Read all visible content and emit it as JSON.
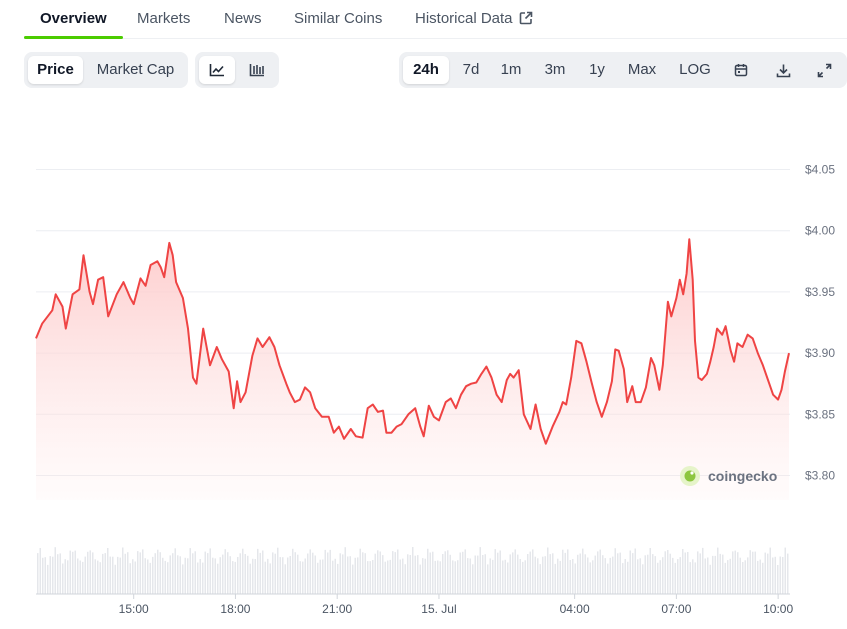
{
  "tabs": [
    {
      "label": "Overview",
      "active": true
    },
    {
      "label": "Markets"
    },
    {
      "label": "News"
    },
    {
      "label": "Similar Coins"
    },
    {
      "label": "Historical Data",
      "external": true
    }
  ],
  "metric_toggle": [
    "Price",
    "Market Cap"
  ],
  "metric_active": "Price",
  "chart_style": {
    "active": "line",
    "options": [
      "line-chart-icon",
      "candlestick-icon"
    ]
  },
  "ranges": [
    "24h",
    "7d",
    "1m",
    "3m",
    "1y",
    "Max",
    "LOG"
  ],
  "range_active": "24h",
  "tools": [
    "calendar-icon",
    "download-icon",
    "fullscreen-icon"
  ],
  "watermark": "coingecko",
  "colors": {
    "line": "#ef4444",
    "fill": "#fecaca",
    "volume": "#e5e7eb",
    "accent": "#4bcc00"
  },
  "chart_data": {
    "type": "area",
    "ylim": [
      3.78,
      4.07
    ],
    "yticks": [
      {
        "v": 4.05,
        "label": "$4.05"
      },
      {
        "v": 4.0,
        "label": "$4.00"
      },
      {
        "v": 3.95,
        "label": "$3.95"
      },
      {
        "v": 3.9,
        "label": "$3.90"
      },
      {
        "v": 3.85,
        "label": "$3.85"
      },
      {
        "v": 3.8,
        "label": "$3.80"
      }
    ],
    "xlim": [
      12.12,
      34.32
    ],
    "xticks": [
      {
        "t": 15,
        "label": "15:00"
      },
      {
        "t": 18,
        "label": "18:00"
      },
      {
        "t": 21,
        "label": "21:00"
      },
      {
        "t": 24,
        "label": "15. Jul"
      },
      {
        "t": 28,
        "label": "04:00"
      },
      {
        "t": 31,
        "label": "07:00"
      },
      {
        "t": 34,
        "label": "10:00"
      }
    ],
    "price": [
      [
        12.12,
        3.912
      ],
      [
        12.3,
        3.924
      ],
      [
        12.6,
        3.935
      ],
      [
        12.7,
        3.948
      ],
      [
        12.9,
        3.938
      ],
      [
        13.0,
        3.92
      ],
      [
        13.2,
        3.948
      ],
      [
        13.4,
        3.952
      ],
      [
        13.52,
        3.98
      ],
      [
        13.7,
        3.95
      ],
      [
        13.8,
        3.94
      ],
      [
        13.95,
        3.96
      ],
      [
        14.1,
        3.962
      ],
      [
        14.25,
        3.93
      ],
      [
        14.5,
        3.948
      ],
      [
        14.7,
        3.958
      ],
      [
        14.9,
        3.945
      ],
      [
        15.0,
        3.94
      ],
      [
        15.2,
        3.961
      ],
      [
        15.35,
        3.955
      ],
      [
        15.5,
        3.972
      ],
      [
        15.7,
        3.975
      ],
      [
        15.8,
        3.97
      ],
      [
        15.9,
        3.962
      ],
      [
        16.05,
        3.99
      ],
      [
        16.15,
        3.98
      ],
      [
        16.25,
        3.958
      ],
      [
        16.45,
        3.945
      ],
      [
        16.6,
        3.92
      ],
      [
        16.75,
        3.88
      ],
      [
        16.85,
        3.875
      ],
      [
        17.05,
        3.92
      ],
      [
        17.25,
        3.89
      ],
      [
        17.45,
        3.905
      ],
      [
        17.6,
        3.895
      ],
      [
        17.8,
        3.885
      ],
      [
        17.95,
        3.855
      ],
      [
        18.05,
        3.877
      ],
      [
        18.15,
        3.86
      ],
      [
        18.3,
        3.868
      ],
      [
        18.5,
        3.898
      ],
      [
        18.65,
        3.912
      ],
      [
        18.8,
        3.905
      ],
      [
        19.0,
        3.913
      ],
      [
        19.15,
        3.905
      ],
      [
        19.3,
        3.89
      ],
      [
        19.5,
        3.875
      ],
      [
        19.6,
        3.868
      ],
      [
        19.75,
        3.86
      ],
      [
        19.9,
        3.862
      ],
      [
        20.05,
        3.872
      ],
      [
        20.2,
        3.868
      ],
      [
        20.35,
        3.855
      ],
      [
        20.55,
        3.848
      ],
      [
        20.75,
        3.848
      ],
      [
        20.9,
        3.835
      ],
      [
        21.05,
        3.84
      ],
      [
        21.2,
        3.83
      ],
      [
        21.4,
        3.838
      ],
      [
        21.55,
        3.832
      ],
      [
        21.75,
        3.831
      ],
      [
        21.9,
        3.855
      ],
      [
        22.05,
        3.858
      ],
      [
        22.2,
        3.852
      ],
      [
        22.35,
        3.853
      ],
      [
        22.45,
        3.835
      ],
      [
        22.6,
        3.835
      ],
      [
        22.75,
        3.84
      ],
      [
        22.9,
        3.842
      ],
      [
        23.1,
        3.85
      ],
      [
        23.3,
        3.855
      ],
      [
        23.45,
        3.84
      ],
      [
        23.55,
        3.832
      ],
      [
        23.7,
        3.857
      ],
      [
        23.85,
        3.848
      ],
      [
        24.0,
        3.845
      ],
      [
        24.2,
        3.86
      ],
      [
        24.35,
        3.863
      ],
      [
        24.5,
        3.855
      ],
      [
        24.65,
        3.866
      ],
      [
        24.8,
        3.873
      ],
      [
        24.95,
        3.875
      ],
      [
        25.1,
        3.876
      ],
      [
        25.25,
        3.883
      ],
      [
        25.4,
        3.889
      ],
      [
        25.55,
        3.88
      ],
      [
        25.7,
        3.866
      ],
      [
        25.85,
        3.86
      ],
      [
        26.0,
        3.878
      ],
      [
        26.1,
        3.883
      ],
      [
        26.2,
        3.88
      ],
      [
        26.35,
        3.886
      ],
      [
        26.5,
        3.85
      ],
      [
        26.7,
        3.838
      ],
      [
        26.85,
        3.858
      ],
      [
        27.0,
        3.838
      ],
      [
        27.15,
        3.826
      ],
      [
        27.35,
        3.84
      ],
      [
        27.55,
        3.852
      ],
      [
        27.65,
        3.86
      ],
      [
        27.75,
        3.858
      ],
      [
        27.9,
        3.88
      ],
      [
        28.05,
        3.91
      ],
      [
        28.2,
        3.908
      ],
      [
        28.35,
        3.893
      ],
      [
        28.5,
        3.876
      ],
      [
        28.65,
        3.86
      ],
      [
        28.8,
        3.848
      ],
      [
        28.95,
        3.86
      ],
      [
        29.1,
        3.877
      ],
      [
        29.2,
        3.903
      ],
      [
        29.3,
        3.902
      ],
      [
        29.45,
        3.887
      ],
      [
        29.55,
        3.86
      ],
      [
        29.7,
        3.873
      ],
      [
        29.8,
        3.86
      ],
      [
        29.95,
        3.86
      ],
      [
        30.1,
        3.872
      ],
      [
        30.25,
        3.896
      ],
      [
        30.35,
        3.89
      ],
      [
        30.5,
        3.87
      ],
      [
        30.6,
        3.89
      ],
      [
        30.75,
        3.942
      ],
      [
        30.85,
        3.93
      ],
      [
        31.0,
        3.945
      ],
      [
        31.1,
        3.96
      ],
      [
        31.2,
        3.948
      ],
      [
        31.3,
        3.965
      ],
      [
        31.38,
        3.993
      ],
      [
        31.48,
        3.96
      ],
      [
        31.55,
        3.91
      ],
      [
        31.65,
        3.88
      ],
      [
        31.75,
        3.878
      ],
      [
        31.9,
        3.883
      ],
      [
        32.0,
        3.893
      ],
      [
        32.1,
        3.905
      ],
      [
        32.2,
        3.92
      ],
      [
        32.35,
        3.915
      ],
      [
        32.45,
        3.922
      ],
      [
        32.6,
        3.902
      ],
      [
        32.7,
        3.893
      ],
      [
        32.8,
        3.908
      ],
      [
        32.95,
        3.905
      ],
      [
        33.1,
        3.915
      ],
      [
        33.25,
        3.912
      ],
      [
        33.4,
        3.9
      ],
      [
        33.55,
        3.89
      ],
      [
        33.7,
        3.878
      ],
      [
        33.85,
        3.866
      ],
      [
        34.0,
        3.862
      ],
      [
        34.1,
        3.87
      ],
      [
        34.2,
        3.885
      ],
      [
        34.32,
        3.9
      ]
    ]
  }
}
